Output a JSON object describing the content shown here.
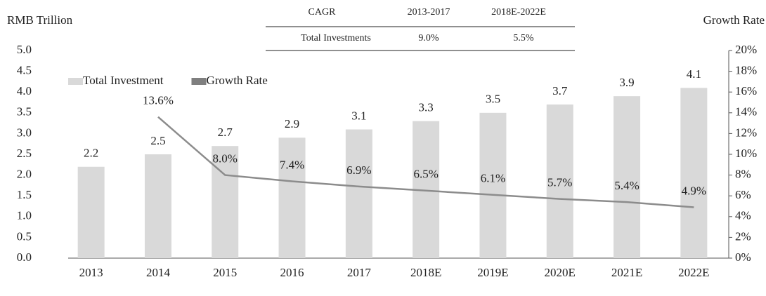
{
  "table": {
    "header": [
      "CAGR",
      "2013-2017",
      "2018E-2022E"
    ],
    "rows": [
      [
        "Total Investments",
        "9.0%",
        "5.5%"
      ]
    ]
  },
  "chart_data": {
    "type": "bar",
    "y_label": "RMB Trillion",
    "y2_label": "Growth Rate",
    "categories": [
      "2013",
      "2014",
      "2015",
      "2016",
      "2017",
      "2018E",
      "2019E",
      "2020E",
      "2021E",
      "2022E"
    ],
    "series": [
      {
        "name": "Total Investment",
        "color": "#d9d9d9",
        "values": [
          2.2,
          2.5,
          2.7,
          2.9,
          3.1,
          3.3,
          3.5,
          3.7,
          3.9,
          4.1
        ]
      },
      {
        "name": "Growth Rate",
        "color": "#8c8c8c",
        "type": "line",
        "axis": "y2",
        "values": [
          null,
          13.6,
          8.0,
          7.4,
          6.9,
          6.5,
          6.1,
          5.7,
          5.4,
          4.9
        ],
        "value_labels": [
          null,
          "13.6%",
          "8.0%",
          "7.4%",
          "6.9%",
          "6.5%",
          "6.1%",
          "5.7%",
          "5.4%",
          "4.9%"
        ]
      }
    ],
    "ylim": [
      0,
      5
    ],
    "yticks": [
      {
        "value": 0,
        "label": "0.0"
      },
      0.5,
      {
        "value": 1,
        "label": "1.0"
      },
      1.5,
      {
        "value": 2,
        "label": "2.0"
      },
      2.5,
      {
        "value": 3,
        "label": "3.0"
      },
      3.5,
      {
        "value": 4,
        "label": "4.0"
      },
      4.5,
      {
        "value": 5,
        "label": "5.0"
      }
    ],
    "y2lim": [
      0,
      20
    ],
    "y2ticks": [
      {
        "value": 0,
        "label": "0%"
      },
      {
        "value": 2,
        "label": "2%"
      },
      {
        "value": 4,
        "label": "4%"
      },
      {
        "value": 6,
        "label": "6%"
      },
      {
        "value": 8,
        "label": "8%"
      },
      {
        "value": 10,
        "label": "10%"
      },
      {
        "value": 12,
        "label": "12%"
      },
      {
        "value": 14,
        "label": "14%"
      },
      {
        "value": 16,
        "label": "16%"
      },
      {
        "value": 18,
        "label": "18%"
      },
      {
        "value": 20,
        "label": "20%"
      }
    ],
    "legend": "top-left"
  }
}
